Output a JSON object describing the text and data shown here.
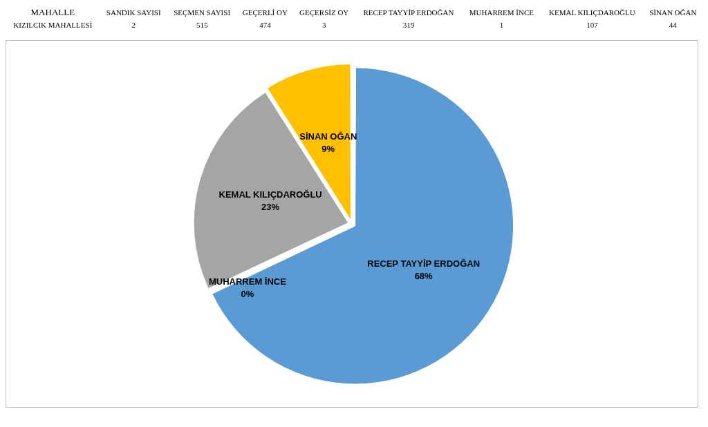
{
  "chart_data": {
    "type": "pie",
    "categories": [
      "RECEP TAYYİP ERDOĞAN",
      "MUHARREM İNCE",
      "KEMAL KILIÇDAROĞLU",
      "SİNAN OĞAN"
    ],
    "values": [
      68,
      0,
      23,
      9
    ],
    "value_labels": [
      "68%",
      "0%",
      "23%",
      "9%"
    ],
    "colors": [
      "#5b9bd5",
      "#843c0c",
      "#a5a5a5",
      "#ffc000"
    ],
    "legend": false,
    "annotations": [
      "MAHALLE",
      "SANDIK SAYISI",
      "SEÇMEN SAYISI",
      "GEÇERLİ OY",
      "GEÇERSİZ OY",
      "RECEP TAYYİP ERDOĞAN",
      "MUHARREM İNCE",
      "KEMAL KILIÇDAROĞLU",
      "SİNAN OĞAN",
      "KIZILCIK MAHALLESİ",
      "2",
      "515",
      "474",
      "3",
      "319",
      "1",
      "107",
      "44"
    ]
  }
}
